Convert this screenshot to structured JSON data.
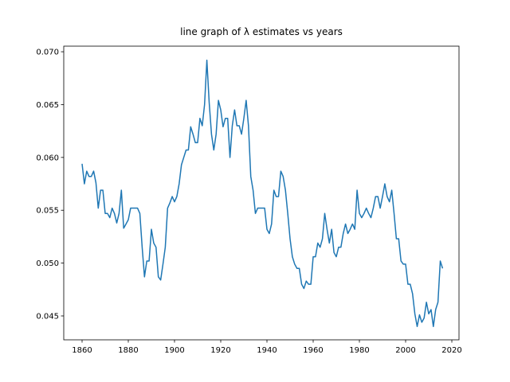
{
  "chart_data": {
    "type": "line",
    "title": "line graph of λ estimates vs years",
    "color": "#1f77b4",
    "x": [
      1860,
      1861,
      1862,
      1863,
      1864,
      1865,
      1866,
      1867,
      1868,
      1869,
      1870,
      1871,
      1872,
      1873,
      1874,
      1875,
      1876,
      1877,
      1878,
      1879,
      1880,
      1881,
      1882,
      1883,
      1884,
      1885,
      1886,
      1887,
      1888,
      1889,
      1890,
      1891,
      1892,
      1893,
      1894,
      1895,
      1896,
      1897,
      1898,
      1899,
      1900,
      1901,
      1902,
      1903,
      1904,
      1905,
      1906,
      1907,
      1908,
      1909,
      1910,
      1911,
      1912,
      1913,
      1914,
      1915,
      1916,
      1917,
      1918,
      1919,
      1920,
      1921,
      1922,
      1923,
      1924,
      1925,
      1926,
      1927,
      1928,
      1929,
      1930,
      1931,
      1932,
      1933,
      1934,
      1935,
      1936,
      1937,
      1938,
      1939,
      1940,
      1941,
      1942,
      1943,
      1944,
      1945,
      1946,
      1947,
      1948,
      1949,
      1950,
      1951,
      1952,
      1953,
      1954,
      1955,
      1956,
      1957,
      1958,
      1959,
      1960,
      1961,
      1962,
      1963,
      1964,
      1965,
      1966,
      1967,
      1968,
      1969,
      1970,
      1971,
      1972,
      1973,
      1974,
      1975,
      1976,
      1977,
      1978,
      1979,
      1980,
      1981,
      1982,
      1983,
      1984,
      1985,
      1986,
      1987,
      1988,
      1989,
      1990,
      1991,
      1992,
      1993,
      1994,
      1995,
      1996,
      1997,
      1998,
      1999,
      2000,
      2001,
      2002,
      2003,
      2004,
      2005,
      2006,
      2007,
      2008,
      2009,
      2010,
      2011,
      2012,
      2013,
      2014,
      2015,
      2016
    ],
    "values": [
      0.0594,
      0.0575,
      0.0587,
      0.0582,
      0.0582,
      0.0587,
      0.0576,
      0.0552,
      0.0569,
      0.0569,
      0.0547,
      0.0547,
      0.0543,
      0.0552,
      0.0547,
      0.0538,
      0.0547,
      0.0569,
      0.0533,
      0.0537,
      0.0541,
      0.0552,
      0.0552,
      0.0552,
      0.0552,
      0.0547,
      0.0515,
      0.0487,
      0.0502,
      0.0502,
      0.0532,
      0.0519,
      0.0515,
      0.0487,
      0.0484,
      0.0499,
      0.0515,
      0.0552,
      0.0557,
      0.0563,
      0.0558,
      0.0563,
      0.0575,
      0.0593,
      0.06,
      0.0607,
      0.0607,
      0.0629,
      0.0622,
      0.0614,
      0.0614,
      0.0637,
      0.063,
      0.065,
      0.0692,
      0.0652,
      0.0622,
      0.0607,
      0.0622,
      0.0654,
      0.0645,
      0.0629,
      0.0637,
      0.0637,
      0.06,
      0.063,
      0.0645,
      0.063,
      0.063,
      0.0622,
      0.0637,
      0.0654,
      0.063,
      0.0582,
      0.0569,
      0.0547,
      0.0552,
      0.0552,
      0.0552,
      0.0552,
      0.0532,
      0.0528,
      0.0537,
      0.0569,
      0.0563,
      0.0563,
      0.0587,
      0.0582,
      0.0569,
      0.0547,
      0.0523,
      0.0506,
      0.0499,
      0.0495,
      0.0495,
      0.048,
      0.0476,
      0.0483,
      0.048,
      0.048,
      0.0506,
      0.0506,
      0.0519,
      0.0515,
      0.0523,
      0.0547,
      0.0532,
      0.0519,
      0.0532,
      0.051,
      0.0506,
      0.0515,
      0.0515,
      0.0528,
      0.0537,
      0.0528,
      0.0532,
      0.0537,
      0.0532,
      0.0569,
      0.0547,
      0.0543,
      0.0547,
      0.0552,
      0.0547,
      0.0543,
      0.0552,
      0.0563,
      0.0563,
      0.0552,
      0.0563,
      0.0575,
      0.0563,
      0.0558,
      0.0569,
      0.0547,
      0.0523,
      0.0523,
      0.0502,
      0.0499,
      0.0499,
      0.048,
      0.048,
      0.0471,
      0.0452,
      0.044,
      0.0451,
      0.0444,
      0.0448,
      0.0463,
      0.0452,
      0.0456,
      0.044,
      0.0456,
      0.0463,
      0.0502,
      0.0495
    ],
    "xlim": [
      1852.07,
      2023.1
    ],
    "ylim": [
      0.04274,
      0.07053
    ],
    "xticks": [
      1860,
      1880,
      1900,
      1920,
      1940,
      1960,
      1980,
      2000,
      2020
    ],
    "yticks": [
      0.045,
      {
        "value": 0.05,
        "label": "0.050"
      },
      0.055,
      {
        "value": 0.06,
        "label": "0.060"
      },
      0.065,
      {
        "value": 0.07,
        "label": "0.070"
      }
    ]
  }
}
